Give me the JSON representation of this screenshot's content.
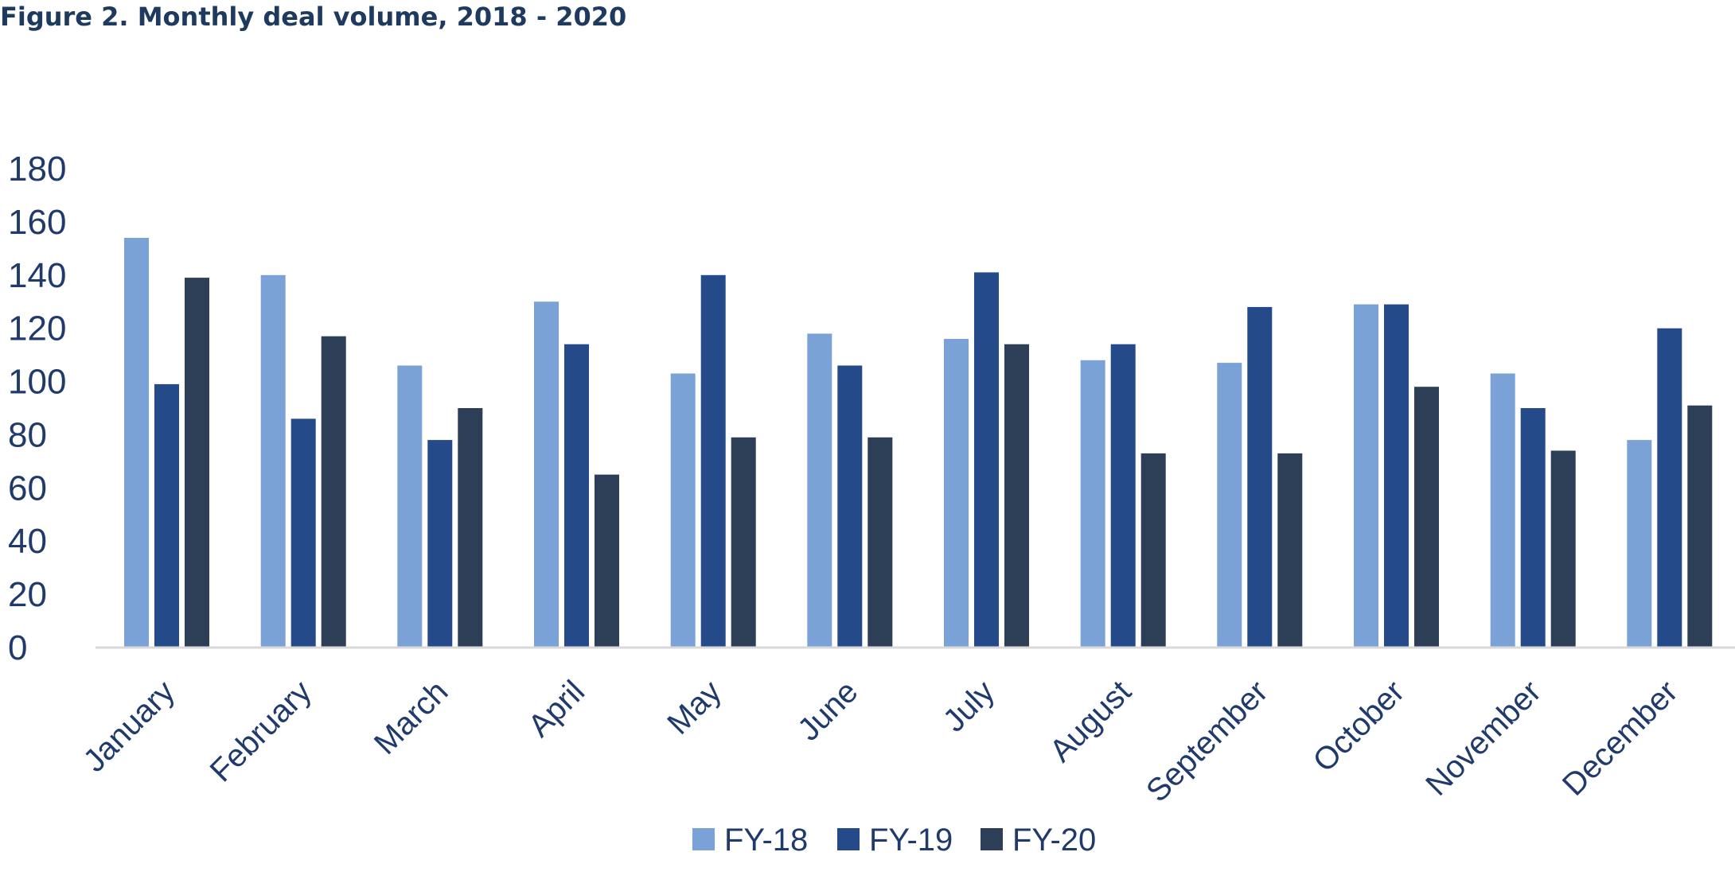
{
  "title": "Figure 2. Monthly deal volume, 2018 - 2020",
  "chart_data": {
    "type": "bar",
    "title": "Figure 2. Monthly deal volume, 2018 - 2020",
    "xlabel": "",
    "ylabel": "",
    "ylim": [
      0,
      180
    ],
    "yticks": [
      0,
      20,
      40,
      60,
      80,
      100,
      120,
      140,
      160,
      180
    ],
    "grid": false,
    "legend_position": "bottom",
    "categories": [
      "January",
      "February",
      "March",
      "April",
      "May",
      "June",
      "July",
      "August",
      "September",
      "October",
      "November",
      "December"
    ],
    "series": [
      {
        "name": "FY-18",
        "color": "#7ba2d6",
        "values": [
          154,
          140,
          106,
          130,
          103,
          118,
          116,
          108,
          107,
          129,
          103,
          78
        ]
      },
      {
        "name": "FY-19",
        "color": "#244a8a",
        "values": [
          99,
          86,
          78,
          114,
          140,
          106,
          141,
          114,
          128,
          129,
          90,
          120
        ]
      },
      {
        "name": "FY-20",
        "color": "#2d3e57",
        "values": [
          139,
          117,
          90,
          65,
          79,
          79,
          114,
          73,
          73,
          98,
          74,
          91
        ]
      }
    ]
  }
}
